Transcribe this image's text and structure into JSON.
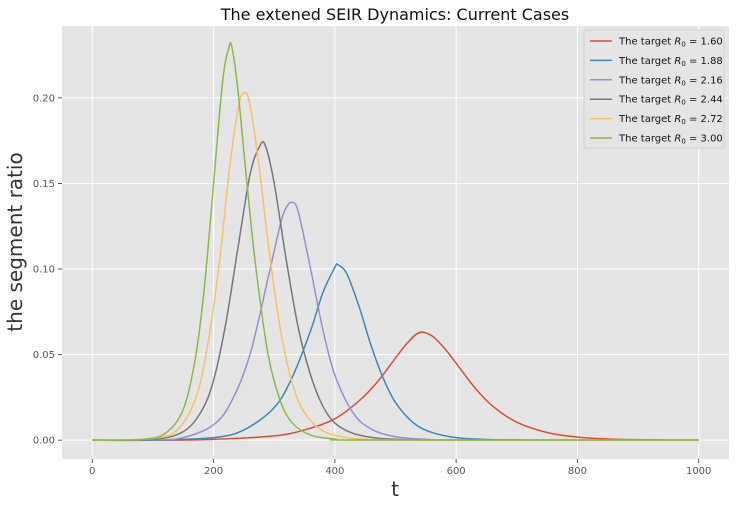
{
  "chart_data": {
    "type": "line",
    "title": "The extened SEIR Dynamics: Current Cases",
    "xlabel": "t",
    "ylabel": "the segment ratio",
    "xlim": [
      -50,
      1050
    ],
    "ylim": [
      -0.011,
      0.242
    ],
    "xticks": [
      "0",
      "200",
      "400",
      "600",
      "800",
      "1000"
    ],
    "yticks": [
      "0.00",
      "0.05",
      "0.10",
      "0.15",
      "0.20"
    ],
    "grid": true,
    "legend_position": "top-right",
    "legend_prefix": "The target",
    "background": "#E5E5E5",
    "series": [
      {
        "name": "R_0 = 1.60",
        "label_value": "1.60",
        "color": "#E24A33",
        "x": [
          0,
          100,
          200,
          300,
          350,
          400,
          440,
          470,
          500,
          520,
          540,
          560,
          580,
          600,
          630,
          660,
          700,
          750,
          800,
          850,
          900,
          950,
          1000
        ],
        "y": [
          0,
          0.0,
          0.0005,
          0.0025,
          0.006,
          0.0125,
          0.023,
          0.034,
          0.048,
          0.057,
          0.063,
          0.061,
          0.054,
          0.045,
          0.031,
          0.02,
          0.0105,
          0.0045,
          0.0018,
          0.0007,
          0.0003,
          0.0001,
          0
        ]
      },
      {
        "name": "R_0 = 1.88",
        "label_value": "1.88",
        "color": "#348ABD",
        "x": [
          0,
          100,
          200,
          250,
          300,
          330,
          360,
          380,
          400,
          405,
          420,
          440,
          460,
          480,
          500,
          530,
          560,
          600,
          650,
          700,
          800,
          1000
        ],
        "y": [
          0,
          0.0,
          0.0015,
          0.006,
          0.019,
          0.037,
          0.064,
          0.086,
          0.101,
          0.1025,
          0.097,
          0.078,
          0.055,
          0.036,
          0.022,
          0.01,
          0.0045,
          0.0015,
          0.0004,
          0.0001,
          0,
          0
        ]
      },
      {
        "name": "R_0 = 2.16",
        "label_value": "2.16",
        "color": "#988ED5",
        "x": [
          0,
          100,
          150,
          200,
          230,
          260,
          290,
          310,
          320,
          330,
          340,
          360,
          380,
          400,
          430,
          460,
          500,
          550,
          600,
          700,
          1000
        ],
        "y": [
          0,
          0.0002,
          0.0015,
          0.009,
          0.023,
          0.05,
          0.095,
          0.126,
          0.136,
          0.139,
          0.133,
          0.1,
          0.065,
          0.038,
          0.016,
          0.0065,
          0.002,
          0.0005,
          0.0001,
          0,
          0
        ]
      },
      {
        "name": "R_0 = 2.44",
        "label_value": "2.44",
        "color": "#777777",
        "x": [
          0,
          100,
          150,
          180,
          200,
          220,
          240,
          260,
          275,
          285,
          300,
          320,
          340,
          360,
          380,
          400,
          430,
          470,
          520,
          600,
          1000
        ],
        "y": [
          0,
          0.0005,
          0.005,
          0.017,
          0.035,
          0.068,
          0.112,
          0.155,
          0.171,
          0.1725,
          0.15,
          0.105,
          0.065,
          0.038,
          0.02,
          0.01,
          0.004,
          0.0012,
          0.0003,
          0,
          0
        ]
      },
      {
        "name": "R_0 = 2.72",
        "label_value": "2.72",
        "color": "#FBC15E",
        "x": [
          0,
          100,
          140,
          170,
          190,
          210,
          225,
          240,
          250,
          260,
          275,
          290,
          310,
          330,
          350,
          380,
          420,
          470,
          550,
          1000
        ],
        "y": [
          0,
          0.001,
          0.006,
          0.024,
          0.055,
          0.105,
          0.155,
          0.193,
          0.203,
          0.196,
          0.16,
          0.115,
          0.065,
          0.033,
          0.016,
          0.0055,
          0.0015,
          0.0003,
          0,
          0
        ]
      },
      {
        "name": "R_0 = 3.00",
        "label_value": "3.00",
        "color": "#8EBA42",
        "x": [
          0,
          80,
          120,
          150,
          170,
          185,
          200,
          215,
          225,
          230,
          240,
          255,
          270,
          290,
          310,
          330,
          360,
          400,
          450,
          1000
        ],
        "y": [
          0,
          0.0004,
          0.004,
          0.018,
          0.048,
          0.09,
          0.15,
          0.21,
          0.229,
          0.23,
          0.205,
          0.15,
          0.1,
          0.05,
          0.023,
          0.01,
          0.003,
          0.0007,
          0.0001,
          0
        ]
      }
    ]
  }
}
